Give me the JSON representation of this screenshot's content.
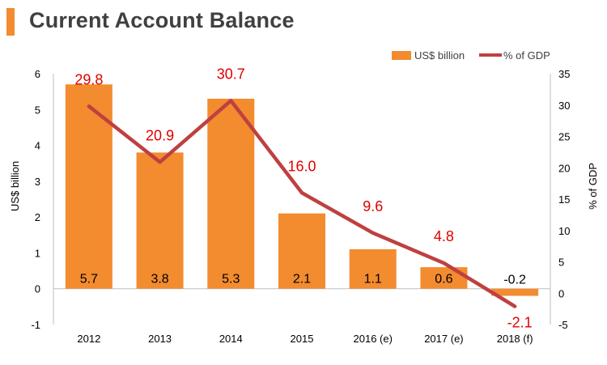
{
  "title": "Current Account Balance",
  "colors": {
    "accent": "#F38B2F",
    "bar": "#F38B2F",
    "line": "#BF4040",
    "lineLabel": "#E00000",
    "axisText": "#000000",
    "title": "#404040"
  },
  "chart_data": {
    "type": "bar",
    "categories": [
      "2012",
      "2013",
      "2014",
      "2015",
      "2016 (e)",
      "2017 (e)",
      "2018 (f)"
    ],
    "ylabel": "US$ billion",
    "y2label": "% of GDP",
    "ylim": [
      -1,
      6
    ],
    "y2lim": [
      -5,
      35
    ],
    "yticks": [
      "6",
      "5",
      "4",
      "3",
      "2",
      "1",
      "0",
      "-1"
    ],
    "y2ticks": [
      "35",
      "30",
      "25",
      "20",
      "15",
      "10",
      "5",
      "0",
      "-5"
    ],
    "legend_position": "top-right",
    "grid": false,
    "series": [
      {
        "name": "US$ billion",
        "type": "bar",
        "values": [
          5.7,
          3.8,
          5.3,
          2.1,
          1.1,
          0.6,
          -0.2
        ],
        "labels": [
          "5.7",
          "3.8",
          "5.3",
          "2.1",
          "1.1",
          "0.6",
          "-0.2"
        ]
      },
      {
        "name": "% of GDP",
        "type": "line",
        "axis": "right",
        "values": [
          29.8,
          20.9,
          30.7,
          16.0,
          9.6,
          4.8,
          -2.1
        ],
        "labels": [
          "29.8",
          "20.9",
          "30.7",
          "16.0",
          "9.6",
          "4.8",
          "-2.1"
        ]
      }
    ]
  }
}
